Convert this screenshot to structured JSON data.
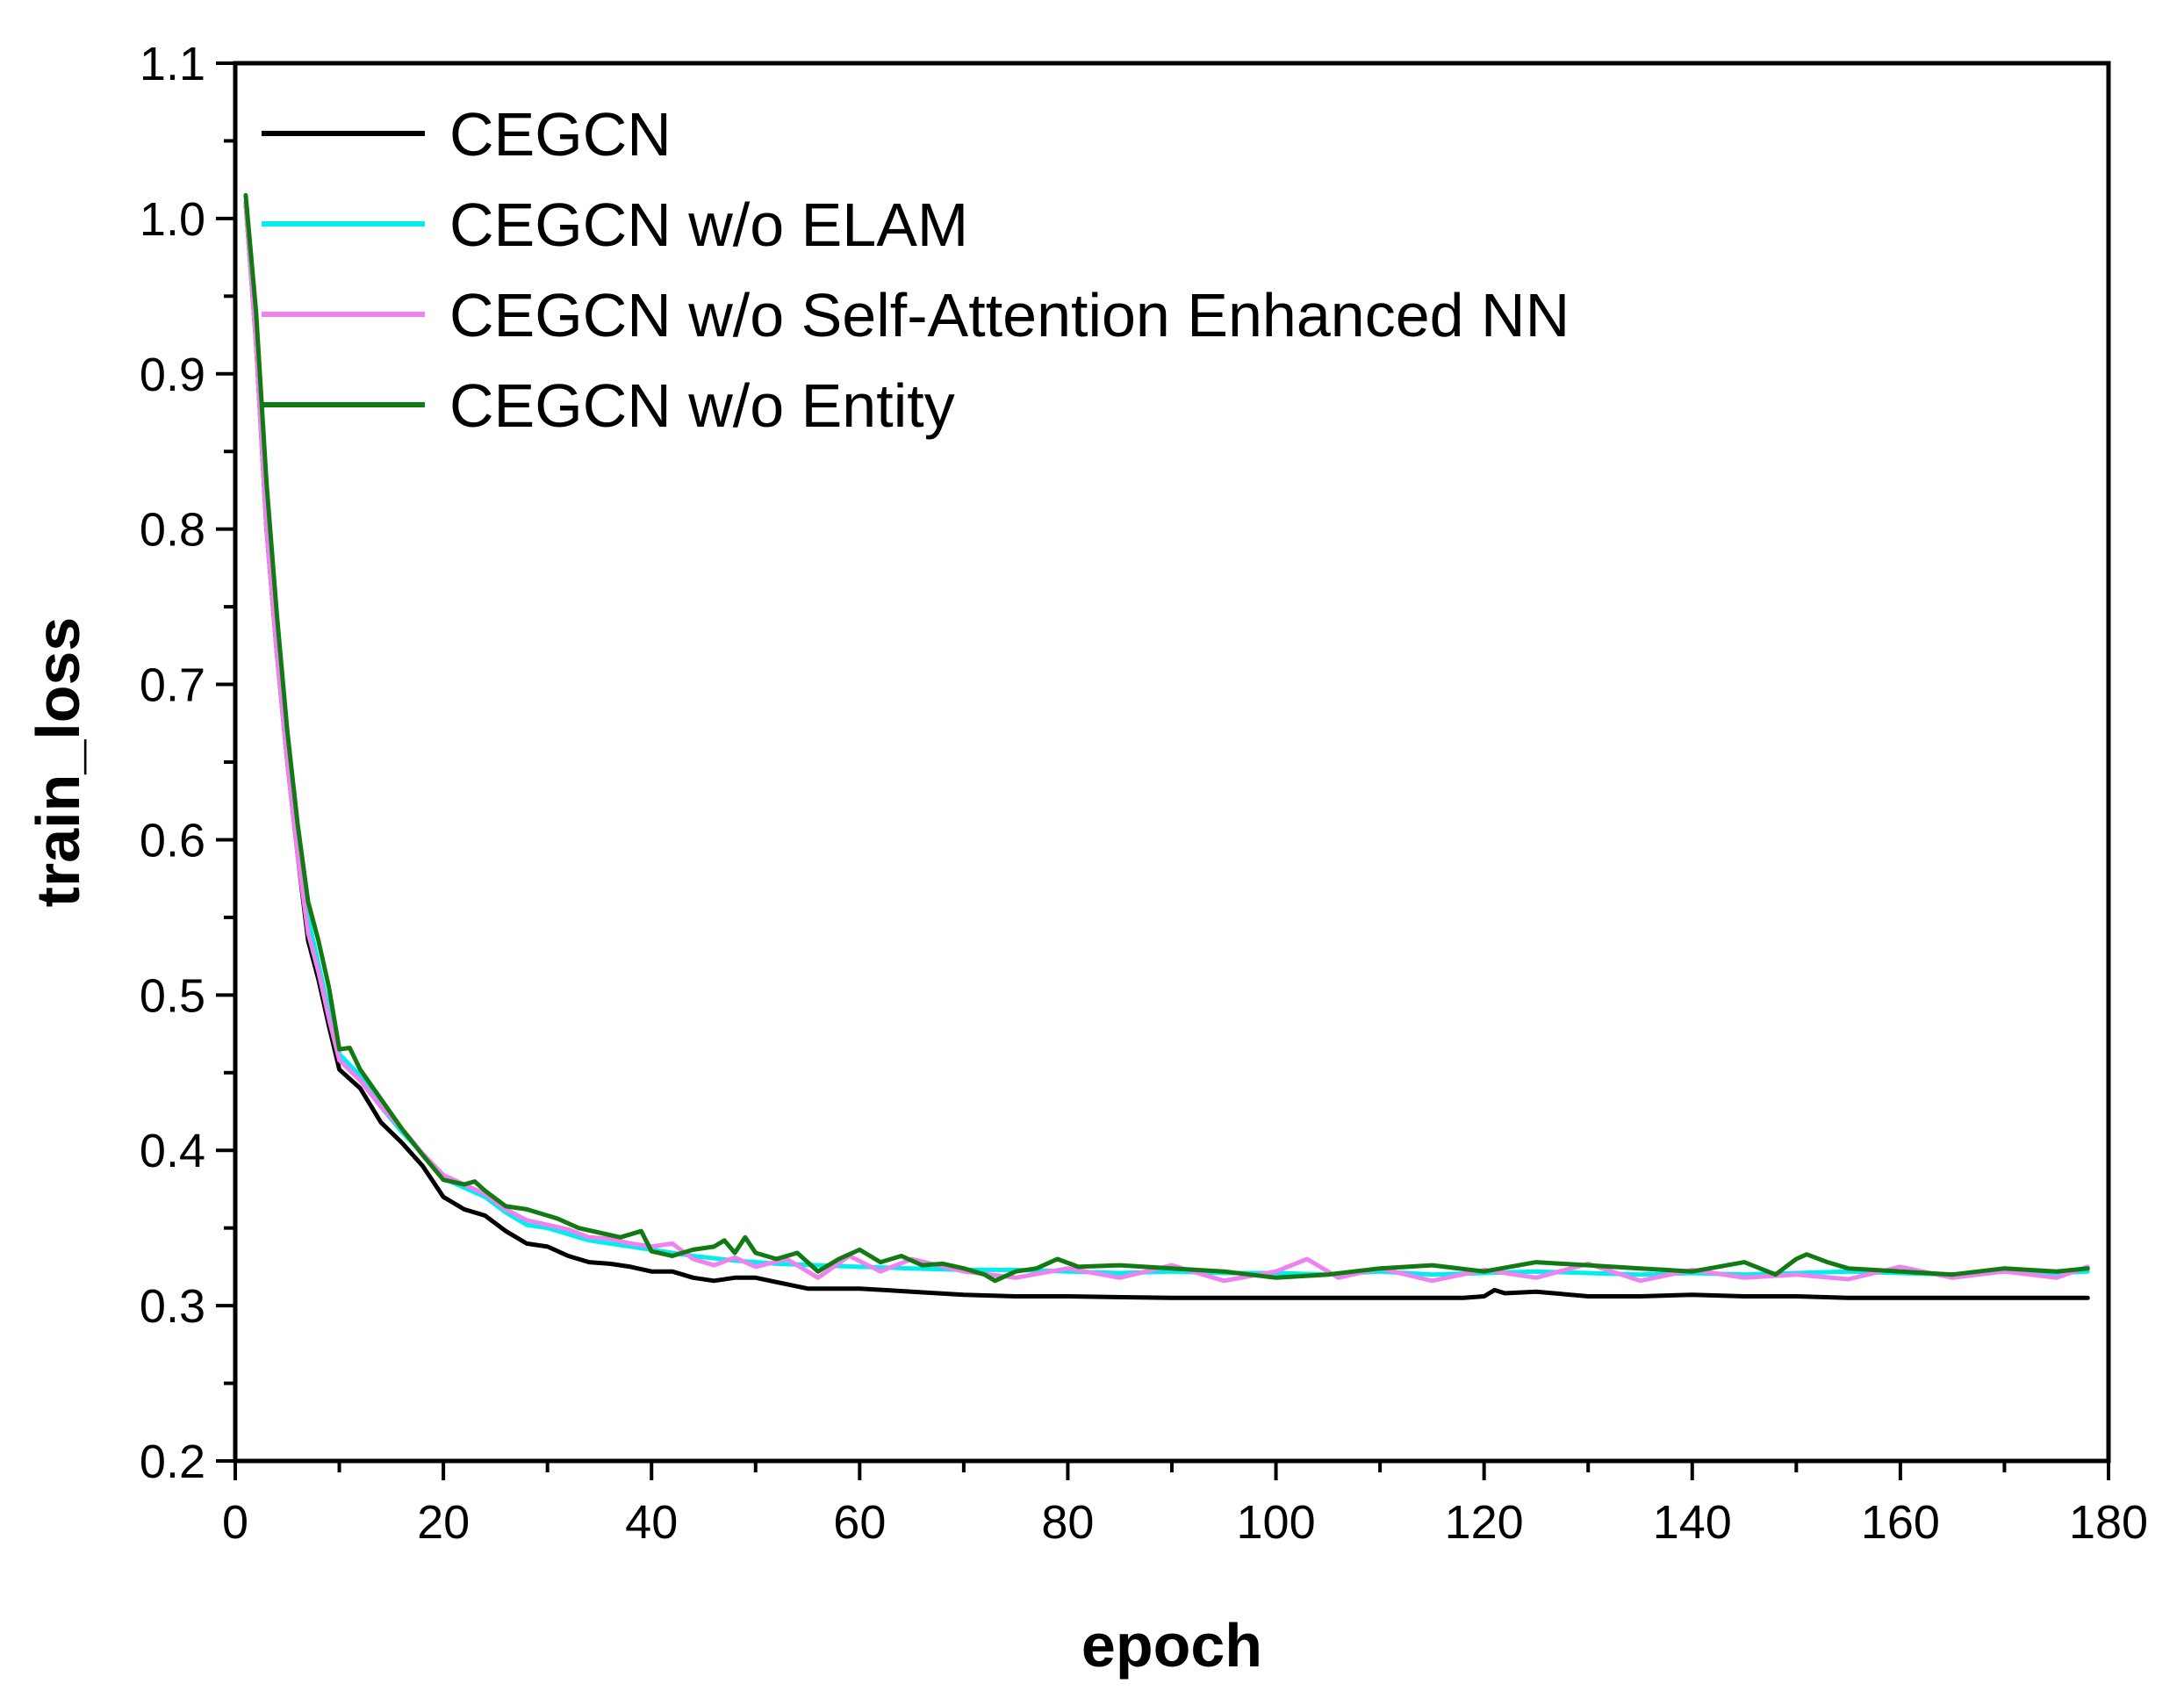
{
  "chart_data": {
    "type": "line",
    "title": "",
    "xlabel": "epoch",
    "ylabel": "train_loss",
    "xlim": [
      0,
      180
    ],
    "ylim": [
      0.2,
      1.1
    ],
    "x_ticks": [
      0,
      20,
      40,
      60,
      80,
      100,
      120,
      140,
      160,
      180
    ],
    "x_tick_labels": [
      "0",
      "20",
      "40",
      "60",
      "80",
      "100",
      "120",
      "140",
      "160",
      "180"
    ],
    "y_ticks": [
      0.2,
      0.3,
      0.4,
      0.5,
      0.6,
      0.7,
      0.8,
      0.9,
      1.0,
      1.1
    ],
    "y_tick_labels": [
      "0.2",
      "0.3",
      "0.4",
      "0.5",
      "0.6",
      "0.7",
      "0.8",
      "0.9",
      "1.0",
      "1.1"
    ],
    "grid": false,
    "legend_position": "top-left",
    "series": [
      {
        "name": "CEGCN",
        "color": "#000000",
        "x": [
          1,
          2,
          3,
          4,
          5,
          6,
          7,
          8,
          9,
          10,
          12,
          14,
          16,
          18,
          20,
          22,
          24,
          26,
          28,
          30,
          32,
          34,
          36,
          38,
          40,
          42,
          44,
          46,
          48,
          50,
          55,
          60,
          65,
          70,
          75,
          80,
          90,
          100,
          110,
          118,
          120,
          121,
          122,
          125,
          130,
          135,
          140,
          145,
          150,
          155,
          160,
          165,
          170,
          175,
          178
        ],
        "y": [
          1.01,
          0.92,
          0.8,
          0.72,
          0.65,
          0.59,
          0.535,
          0.51,
          0.48,
          0.452,
          0.44,
          0.418,
          0.405,
          0.39,
          0.37,
          0.362,
          0.358,
          0.348,
          0.34,
          0.338,
          0.332,
          0.328,
          0.327,
          0.325,
          0.322,
          0.322,
          0.318,
          0.316,
          0.318,
          0.318,
          0.311,
          0.311,
          0.309,
          0.307,
          0.306,
          0.306,
          0.305,
          0.305,
          0.305,
          0.305,
          0.306,
          0.31,
          0.308,
          0.309,
          0.306,
          0.306,
          0.307,
          0.306,
          0.306,
          0.305,
          0.305,
          0.305,
          0.305,
          0.305,
          0.305
        ]
      },
      {
        "name": "CEGCN w/o ELAM",
        "color": "#00eeee",
        "x": [
          1,
          2,
          3,
          4,
          5,
          6,
          7,
          8,
          9,
          10,
          12,
          14,
          16,
          18,
          20,
          22,
          24,
          26,
          28,
          30,
          32,
          34,
          36,
          38,
          40,
          44,
          48,
          52,
          56,
          60,
          65,
          70,
          75,
          80,
          85,
          90,
          95,
          100,
          105,
          110,
          115,
          120,
          125,
          130,
          135,
          140,
          145,
          150,
          155,
          160,
          165,
          170,
          175,
          178
        ],
        "y": [
          1.01,
          0.93,
          0.81,
          0.73,
          0.66,
          0.6,
          0.55,
          0.52,
          0.49,
          0.462,
          0.448,
          0.428,
          0.412,
          0.398,
          0.382,
          0.376,
          0.37,
          0.36,
          0.352,
          0.35,
          0.346,
          0.342,
          0.34,
          0.338,
          0.336,
          0.332,
          0.329,
          0.327,
          0.326,
          0.325,
          0.324,
          0.323,
          0.323,
          0.322,
          0.321,
          0.322,
          0.321,
          0.321,
          0.32,
          0.322,
          0.32,
          0.321,
          0.322,
          0.321,
          0.32,
          0.321,
          0.32,
          0.321,
          0.322,
          0.321,
          0.32,
          0.322,
          0.321,
          0.322
        ]
      },
      {
        "name": "CEGCN w/o Self-Attention Enhanced NN",
        "color": "#ee82ee",
        "x": [
          1,
          2,
          3,
          4,
          5,
          6,
          7,
          8,
          9,
          10,
          12,
          14,
          16,
          18,
          20,
          22,
          24,
          26,
          28,
          30,
          32,
          34,
          36,
          38,
          40,
          42,
          44,
          46,
          48,
          50,
          53,
          56,
          59,
          62,
          65,
          70,
          75,
          80,
          85,
          90,
          95,
          100,
          103,
          106,
          110,
          115,
          120,
          125,
          130,
          135,
          140,
          145,
          150,
          155,
          160,
          165,
          170,
          175,
          178
        ],
        "y": [
          1.01,
          0.92,
          0.8,
          0.72,
          0.65,
          0.59,
          0.54,
          0.515,
          0.485,
          0.458,
          0.445,
          0.428,
          0.414,
          0.398,
          0.384,
          0.378,
          0.372,
          0.362,
          0.355,
          0.352,
          0.349,
          0.344,
          0.343,
          0.34,
          0.338,
          0.34,
          0.33,
          0.326,
          0.331,
          0.325,
          0.33,
          0.318,
          0.332,
          0.322,
          0.33,
          0.322,
          0.318,
          0.324,
          0.318,
          0.326,
          0.316,
          0.322,
          0.33,
          0.318,
          0.324,
          0.316,
          0.323,
          0.318,
          0.327,
          0.316,
          0.323,
          0.318,
          0.32,
          0.317,
          0.325,
          0.318,
          0.322,
          0.318,
          0.325
        ]
      },
      {
        "name": "CEGCN w/o Entity",
        "color": "#127a12",
        "x": [
          1,
          2,
          3,
          4,
          5,
          6,
          7,
          8,
          9,
          10,
          11,
          12,
          14,
          16,
          18,
          20,
          22,
          23,
          24,
          26,
          28,
          30,
          31,
          33,
          35,
          37,
          39,
          40,
          42,
          44,
          46,
          47,
          48,
          49,
          50,
          52,
          54,
          56,
          58,
          60,
          62,
          64,
          66,
          68,
          70,
          72,
          73,
          75,
          77,
          79,
          81,
          85,
          90,
          95,
          100,
          105,
          110,
          115,
          120,
          125,
          130,
          135,
          140,
          145,
          148,
          150,
          151,
          153,
          155,
          160,
          165,
          170,
          175,
          178
        ],
        "y": [
          1.015,
          0.94,
          0.83,
          0.745,
          0.67,
          0.61,
          0.56,
          0.535,
          0.505,
          0.465,
          0.466,
          0.452,
          0.433,
          0.414,
          0.397,
          0.381,
          0.378,
          0.38,
          0.374,
          0.364,
          0.362,
          0.358,
          0.356,
          0.35,
          0.347,
          0.344,
          0.348,
          0.335,
          0.332,
          0.336,
          0.338,
          0.342,
          0.334,
          0.344,
          0.334,
          0.33,
          0.334,
          0.322,
          0.33,
          0.336,
          0.328,
          0.332,
          0.326,
          0.327,
          0.324,
          0.32,
          0.316,
          0.322,
          0.324,
          0.33,
          0.325,
          0.326,
          0.324,
          0.322,
          0.318,
          0.32,
          0.324,
          0.326,
          0.322,
          0.328,
          0.326,
          0.324,
          0.322,
          0.328,
          0.32,
          0.33,
          0.333,
          0.328,
          0.324,
          0.322,
          0.32,
          0.324,
          0.322,
          0.324
        ]
      }
    ]
  }
}
